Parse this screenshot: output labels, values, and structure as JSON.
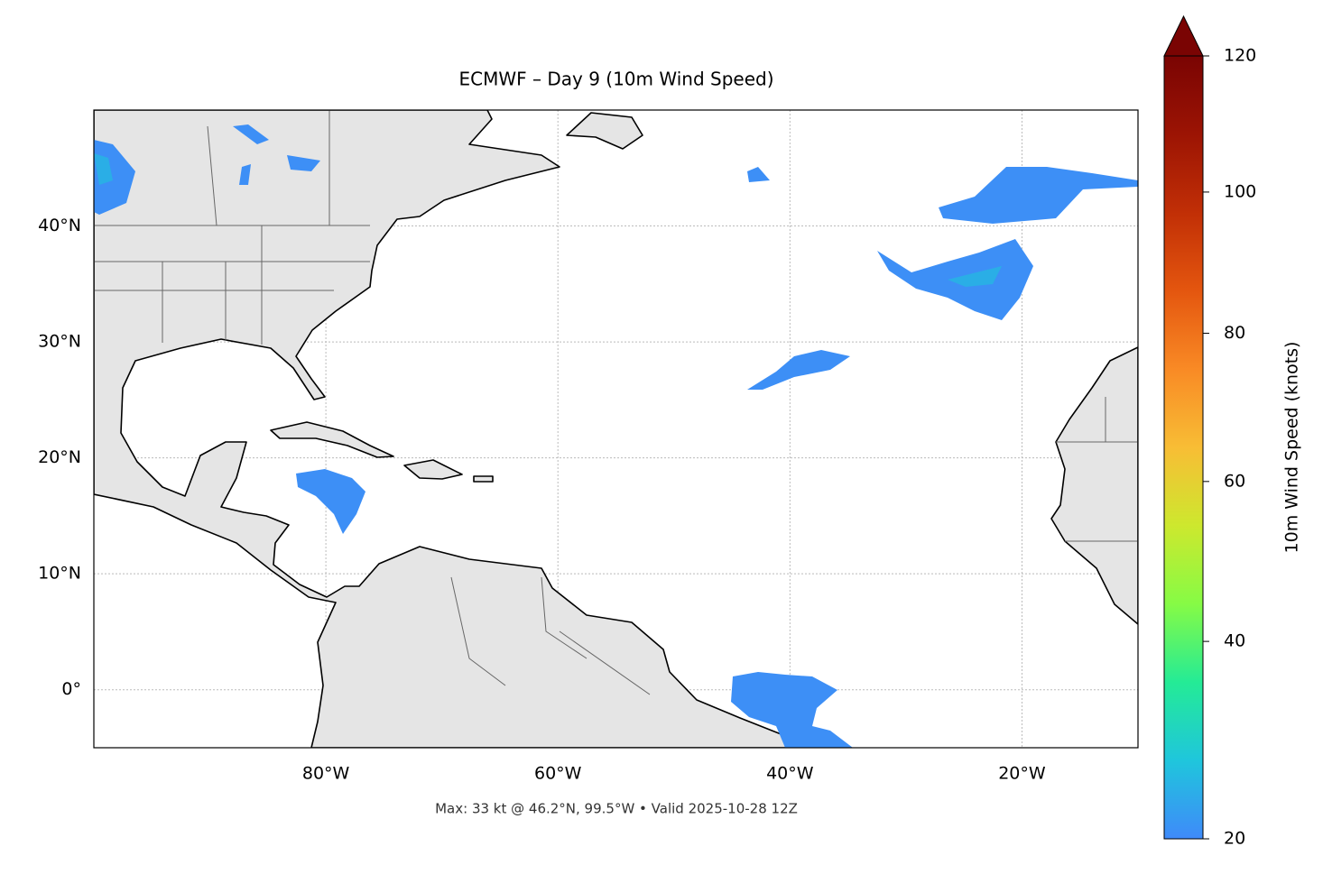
{
  "map": {
    "title": "ECMWF – Day 9 (10m Wind Speed)",
    "footer": "Max: 33 kt @ 46.2°N, 99.5°W • Valid 2025-10-28 12Z",
    "xlim": [
      -100,
      -10
    ],
    "ylim": [
      -5,
      50
    ],
    "grid": true,
    "xticks": [
      {
        "value": -80,
        "label": "80°W"
      },
      {
        "value": -60,
        "label": "60°W"
      },
      {
        "value": -40,
        "label": "40°W"
      },
      {
        "value": -20,
        "label": "20°W"
      }
    ],
    "yticks": [
      {
        "value": 0,
        "label": "0°"
      },
      {
        "value": 10,
        "label": "10°N"
      },
      {
        "value": 20,
        "label": "20°N"
      },
      {
        "value": 30,
        "label": "30°N"
      },
      {
        "value": 40,
        "label": "40°N"
      }
    ]
  },
  "colorbar": {
    "label": "10m Wind Speed (knots)",
    "lim": [
      20,
      120
    ],
    "ticks": [
      20,
      40,
      60,
      80,
      100,
      120
    ],
    "norm": "power",
    "gamma": 0.856,
    "extend": "max"
  }
}
